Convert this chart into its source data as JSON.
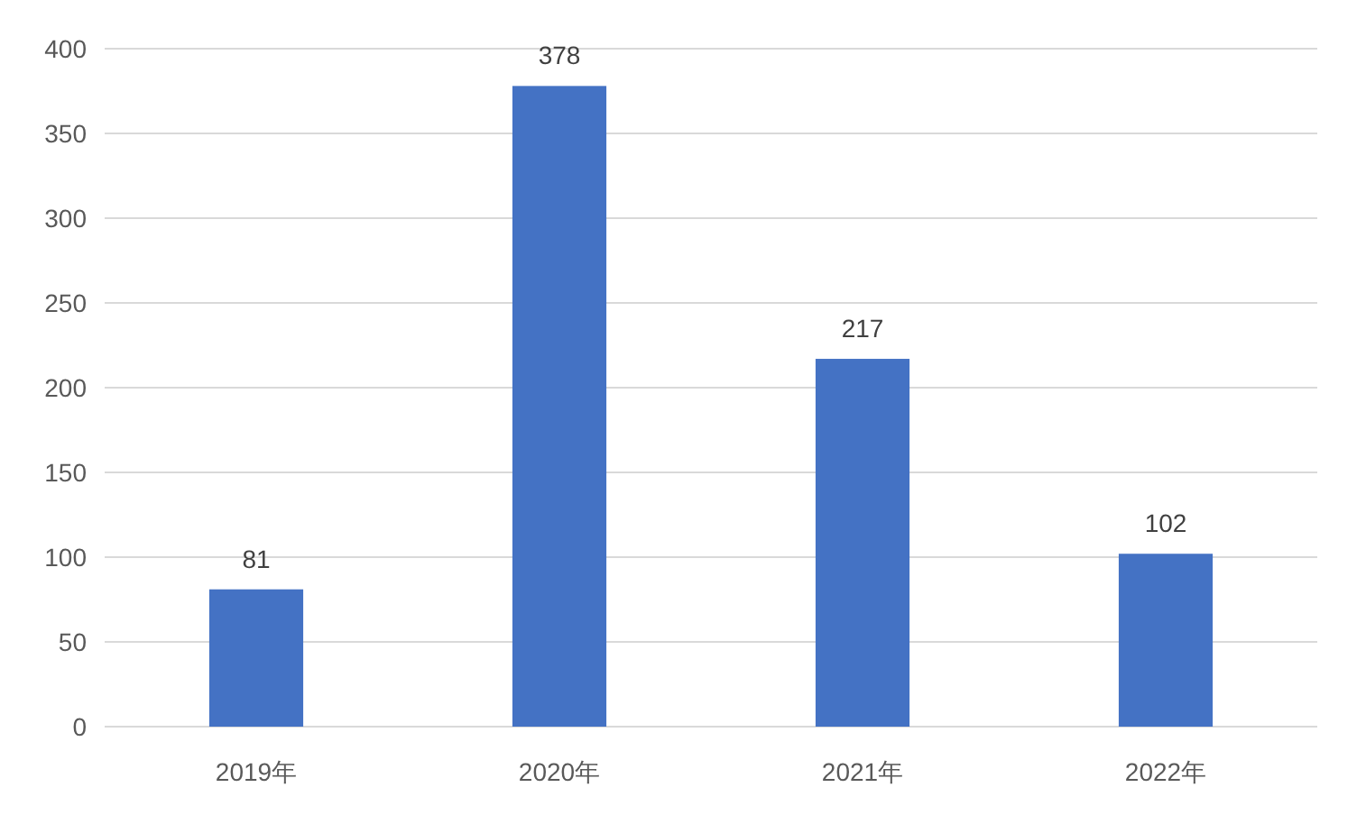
{
  "chart_data": {
    "type": "bar",
    "categories": [
      "2019年",
      "2020年",
      "2021年",
      "2022年"
    ],
    "values": [
      81,
      378,
      217,
      102
    ],
    "color": "#4472c4",
    "ylim": [
      0,
      400
    ],
    "yticks": [
      0,
      50,
      100,
      150,
      200,
      250,
      300,
      350,
      400
    ],
    "grid": "y",
    "data_labels": true
  }
}
